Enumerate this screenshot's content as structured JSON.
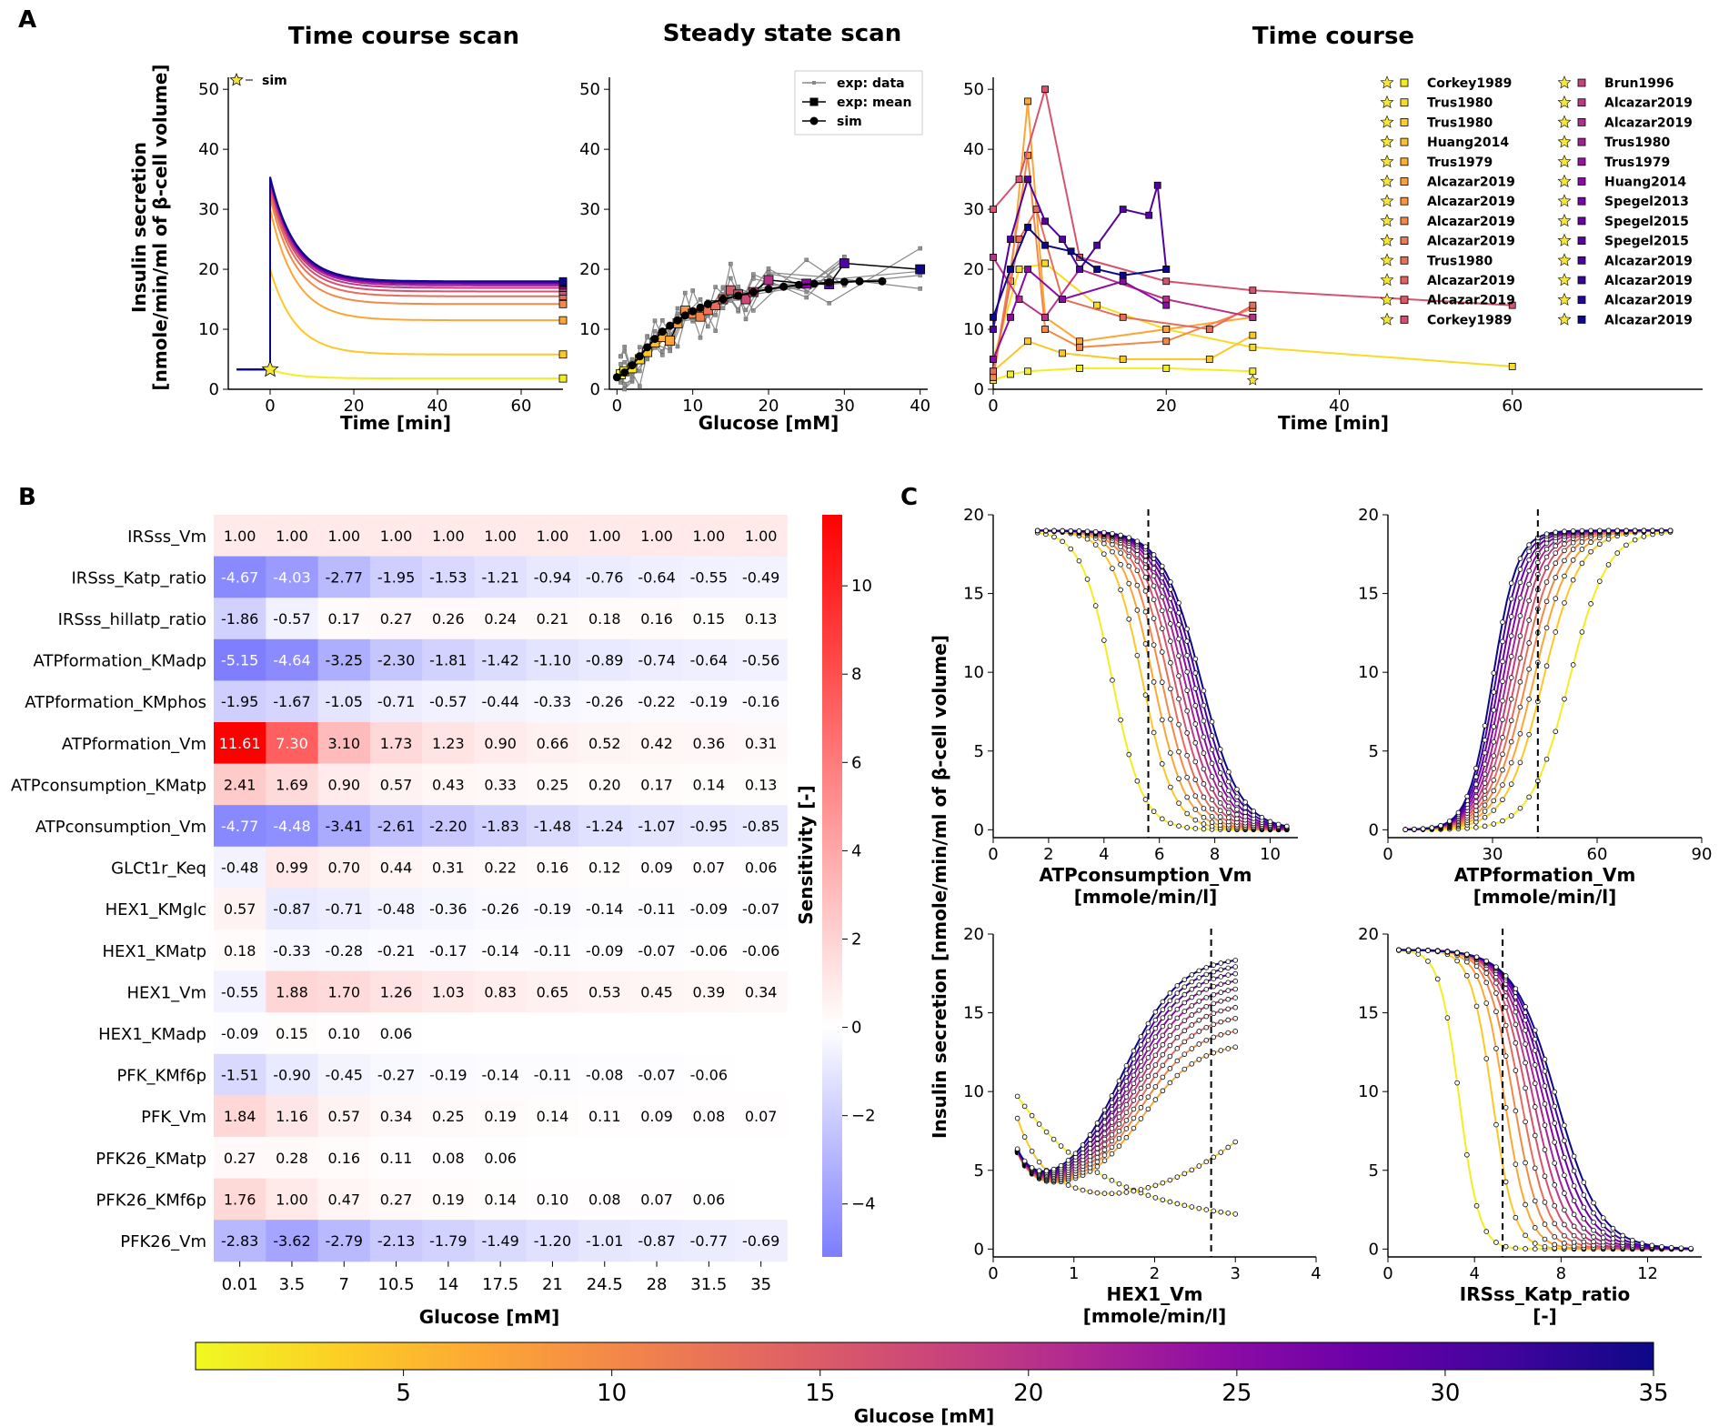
{
  "panels": {
    "A": "A",
    "B": "B",
    "C": "C"
  },
  "titles": {
    "time_course_scan": "Time course scan",
    "steady_state_scan": "Steady state scan",
    "time_course": "Time course"
  },
  "colorbar": {
    "label": "Glucose [mM]",
    "ticks": [
      5,
      10,
      15,
      20,
      25,
      30,
      35
    ],
    "range": [
      0.01,
      35
    ]
  },
  "chart_data": [
    {
      "id": "A1",
      "type": "line",
      "title": "Time course scan",
      "xlabel": "Time [min]",
      "ylabel": "Insulin secretion",
      "ylabel2": "[nmole/min/ml of β-cell volume]",
      "xlim": [
        -10,
        70
      ],
      "ylim": [
        0,
        52
      ],
      "xticks": [
        0,
        20,
        40,
        60
      ],
      "yticks": [
        0,
        10,
        20,
        30,
        40,
        50
      ],
      "legend": [
        "sim"
      ],
      "baseline": 3.3,
      "series": [
        {
          "glucose": 1,
          "peak": 3.3,
          "steady": 1.8
        },
        {
          "glucose": 4,
          "peak": 20,
          "steady": 5.8
        },
        {
          "glucose": 7,
          "peak": 30,
          "steady": 11.5
        },
        {
          "glucose": 10,
          "peak": 32,
          "steady": 14.2
        },
        {
          "glucose": 13,
          "peak": 33,
          "steady": 15.5
        },
        {
          "glucose": 16,
          "peak": 33.8,
          "steady": 16.3
        },
        {
          "glucose": 19,
          "peak": 34.3,
          "steady": 16.9
        },
        {
          "glucose": 22,
          "peak": 34.7,
          "steady": 17.3
        },
        {
          "glucose": 26,
          "peak": 35,
          "steady": 17.6
        },
        {
          "glucose": 30,
          "peak": 35.2,
          "steady": 17.8
        },
        {
          "glucose": 35,
          "peak": 35.4,
          "steady": 18.0
        }
      ]
    },
    {
      "id": "A2",
      "type": "scatter",
      "title": "Steady state scan",
      "xlabel": "Glucose [mM]",
      "xlim": [
        -1,
        41
      ],
      "ylim": [
        0,
        52
      ],
      "xticks": [
        0,
        10,
        20,
        30,
        40
      ],
      "yticks": [
        0,
        10,
        20,
        30,
        40,
        50
      ],
      "legend": [
        "exp: data",
        "exp: mean",
        "sim"
      ],
      "sim_x": [
        0,
        1,
        2,
        3,
        4,
        5,
        6,
        7,
        8,
        9,
        10,
        11,
        12,
        14,
        16,
        18,
        20,
        22,
        24,
        26,
        28,
        30,
        32,
        35
      ],
      "sim_y": [
        2.0,
        2.8,
        4.0,
        5.5,
        7.0,
        8.4,
        9.6,
        10.6,
        11.5,
        12.3,
        13.0,
        13.6,
        14.2,
        15.0,
        15.6,
        16.2,
        16.7,
        17.1,
        17.4,
        17.6,
        17.8,
        17.9,
        18.0,
        18.0
      ],
      "mean_x": [
        0.5,
        1,
        2,
        3,
        4,
        5,
        6,
        7,
        8,
        9,
        10,
        11,
        12,
        13,
        14,
        15,
        16,
        17,
        18,
        20,
        25,
        28,
        30,
        40
      ],
      "mean_y": [
        2.5,
        3.0,
        3.5,
        5.0,
        6.2,
        7.8,
        8.7,
        8.1,
        11.0,
        13.1,
        12.6,
        12.1,
        13.2,
        14.0,
        15.0,
        16.5,
        15.8,
        15.0,
        16.2,
        18.2,
        17.6,
        17.5,
        21.0,
        20.0
      ]
    },
    {
      "id": "A3",
      "type": "line",
      "title": "Time course",
      "xlabel": "Time [min]",
      "xlim": [
        0,
        82
      ],
      "ylim": [
        0,
        52
      ],
      "xticks": [
        0,
        20,
        40,
        60
      ],
      "yticks": [
        0,
        10,
        20,
        30,
        40,
        50
      ],
      "legend_col1": [
        "Corkey1989",
        "Trus1980",
        "Trus1980",
        "Huang2014",
        "Trus1979",
        "Alcazar2019",
        "Alcazar2019",
        "Alcazar2019",
        "Alcazar2019",
        "Trus1980",
        "Alcazar2019",
        "Alcazar2019",
        "Corkey1989"
      ],
      "legend_col2": [
        "Brun1996",
        "Alcazar2019",
        "Alcazar2019",
        "Trus1980",
        "Trus1979",
        "Huang2014",
        "Spegel2013",
        "Spegel2015",
        "Spegel2015",
        "Alcazar2019",
        "Alcazar2019",
        "Alcazar2019",
        "Alcazar2019"
      ],
      "series": [
        {
          "glucose": 1,
          "points": [
            [
              0,
              1.5
            ],
            [
              2,
              2.5
            ],
            [
              4,
              3
            ],
            [
              10,
              3.5
            ],
            [
              20,
              3.5
            ],
            [
              30,
              3
            ]
          ]
        },
        {
          "glucose": 2.5,
          "points": [
            [
              0,
              5
            ],
            [
              3,
              20
            ],
            [
              6,
              21
            ],
            [
              12,
              14
            ],
            [
              20,
              10
            ],
            [
              30,
              7
            ],
            [
              60,
              3.8
            ]
          ]
        },
        {
          "glucose": 4,
          "points": [
            [
              0,
              3
            ],
            [
              4,
              8
            ],
            [
              8,
              6
            ],
            [
              15,
              5
            ],
            [
              25,
              5
            ],
            [
              30,
              9
            ]
          ]
        },
        {
          "glucose": 7,
          "points": [
            [
              0,
              2
            ],
            [
              2,
              18
            ],
            [
              4,
              48
            ],
            [
              6,
              12
            ],
            [
              10,
              8
            ],
            [
              20,
              10
            ],
            [
              30,
              12
            ]
          ]
        },
        {
          "glucose": 10,
          "points": [
            [
              0,
              2
            ],
            [
              2,
              20
            ],
            [
              4,
              39
            ],
            [
              6,
              10
            ],
            [
              10,
              7
            ],
            [
              20,
              8
            ],
            [
              30,
              13.5
            ]
          ]
        },
        {
          "glucose": 13,
          "points": [
            [
              0,
              3
            ],
            [
              3,
              25
            ],
            [
              5,
              30
            ],
            [
              8,
              15
            ],
            [
              15,
              12
            ],
            [
              25,
              10
            ],
            [
              30,
              14
            ]
          ]
        },
        {
          "glucose": 16,
          "points": [
            [
              0,
              30
            ],
            [
              3,
              35
            ],
            [
              6,
              50
            ],
            [
              10,
              22
            ],
            [
              20,
              18
            ],
            [
              30,
              16.5
            ],
            [
              60,
              14
            ]
          ]
        },
        {
          "glucose": 20,
          "points": [
            [
              0,
              22
            ],
            [
              3,
              15
            ],
            [
              6,
              12
            ],
            [
              10,
              20
            ],
            [
              20,
              15
            ],
            [
              30,
              12
            ]
          ]
        },
        {
          "glucose": 25,
          "points": [
            [
              0,
              5
            ],
            [
              2,
              12
            ],
            [
              4,
              20
            ],
            [
              8,
              15
            ],
            [
              15,
              18
            ],
            [
              20,
              14
            ]
          ]
        },
        {
          "glucose": 30,
          "points": [
            [
              0,
              10
            ],
            [
              2,
              25
            ],
            [
              4,
              35
            ],
            [
              6,
              28
            ],
            [
              8,
              25
            ],
            [
              10,
              20
            ],
            [
              12,
              24
            ],
            [
              15,
              30
            ],
            [
              18,
              29
            ],
            [
              19,
              34
            ],
            [
              20,
              20
            ]
          ]
        },
        {
          "glucose": 35,
          "points": [
            [
              0,
              12
            ],
            [
              2,
              20
            ],
            [
              4,
              27
            ],
            [
              6,
              24
            ],
            [
              9,
              23
            ],
            [
              12,
              20
            ],
            [
              15,
              19
            ],
            [
              20,
              20
            ]
          ]
        }
      ]
    },
    {
      "id": "B",
      "type": "heatmap",
      "xlabel": "Glucose [mM]",
      "colorbar_label": "Sensitivity [-]",
      "vmin": -5.2,
      "vmax": 11.61,
      "colorbar_ticks": [
        -4,
        -2,
        0,
        2,
        4,
        6,
        8,
        10
      ],
      "columns": [
        "0.01",
        "3.5",
        "7",
        "10.5",
        "14",
        "17.5",
        "21",
        "24.5",
        "28",
        "31.5",
        "35"
      ],
      "rows": [
        {
          "label": "IRSss_Vm",
          "values": [
            "1.00",
            "1.00",
            "1.00",
            "1.00",
            "1.00",
            "1.00",
            "1.00",
            "1.00",
            "1.00",
            "1.00",
            "1.00"
          ]
        },
        {
          "label": "IRSss_Katp_ratio",
          "values": [
            "-4.67",
            "-4.03",
            "-2.77",
            "-1.95",
            "-1.53",
            "-1.21",
            "-0.94",
            "-0.76",
            "-0.64",
            "-0.55",
            "-0.49"
          ]
        },
        {
          "label": "IRSss_hillatp_ratio",
          "values": [
            "-1.86",
            "-0.57",
            "0.17",
            "0.27",
            "0.26",
            "0.24",
            "0.21",
            "0.18",
            "0.16",
            "0.15",
            "0.13"
          ]
        },
        {
          "label": "ATPformation_KMadp",
          "values": [
            "-5.15",
            "-4.64",
            "-3.25",
            "-2.30",
            "-1.81",
            "-1.42",
            "-1.10",
            "-0.89",
            "-0.74",
            "-0.64",
            "-0.56"
          ]
        },
        {
          "label": "ATPformation_KMphos",
          "values": [
            "-1.95",
            "-1.67",
            "-1.05",
            "-0.71",
            "-0.57",
            "-0.44",
            "-0.33",
            "-0.26",
            "-0.22",
            "-0.19",
            "-0.16"
          ]
        },
        {
          "label": "ATPformation_Vm",
          "values": [
            "11.61",
            "7.30",
            "3.10",
            "1.73",
            "1.23",
            "0.90",
            "0.66",
            "0.52",
            "0.42",
            "0.36",
            "0.31"
          ]
        },
        {
          "label": "ATPconsumption_KMatp",
          "values": [
            "2.41",
            "1.69",
            "0.90",
            "0.57",
            "0.43",
            "0.33",
            "0.25",
            "0.20",
            "0.17",
            "0.14",
            "0.13"
          ]
        },
        {
          "label": "ATPconsumption_Vm",
          "values": [
            "-4.77",
            "-4.48",
            "-3.41",
            "-2.61",
            "-2.20",
            "-1.83",
            "-1.48",
            "-1.24",
            "-1.07",
            "-0.95",
            "-0.85"
          ]
        },
        {
          "label": "GLCt1r_Keq",
          "values": [
            "-0.48",
            "0.99",
            "0.70",
            "0.44",
            "0.31",
            "0.22",
            "0.16",
            "0.12",
            "0.09",
            "0.07",
            "0.06"
          ]
        },
        {
          "label": "HEX1_KMglc",
          "values": [
            "0.57",
            "-0.87",
            "-0.71",
            "-0.48",
            "-0.36",
            "-0.26",
            "-0.19",
            "-0.14",
            "-0.11",
            "-0.09",
            "-0.07"
          ]
        },
        {
          "label": "HEX1_KMatp",
          "values": [
            "0.18",
            "-0.33",
            "-0.28",
            "-0.21",
            "-0.17",
            "-0.14",
            "-0.11",
            "-0.09",
            "-0.07",
            "-0.06",
            "-0.06"
          ]
        },
        {
          "label": "HEX1_Vm",
          "values": [
            "-0.55",
            "1.88",
            "1.70",
            "1.26",
            "1.03",
            "0.83",
            "0.65",
            "0.53",
            "0.45",
            "0.39",
            "0.34"
          ]
        },
        {
          "label": "HEX1_KMadp",
          "values": [
            "-0.09",
            "0.15",
            "0.10",
            "0.06",
            "",
            "",
            "",
            "",
            "",
            "",
            ""
          ]
        },
        {
          "label": "PFK_KMf6p",
          "values": [
            "-1.51",
            "-0.90",
            "-0.45",
            "-0.27",
            "-0.19",
            "-0.14",
            "-0.11",
            "-0.08",
            "-0.07",
            "-0.06",
            ""
          ]
        },
        {
          "label": "PFK_Vm",
          "values": [
            "1.84",
            "1.16",
            "0.57",
            "0.34",
            "0.25",
            "0.19",
            "0.14",
            "0.11",
            "0.09",
            "0.08",
            "0.07"
          ]
        },
        {
          "label": "PFK26_KMatp",
          "values": [
            "0.27",
            "0.28",
            "0.16",
            "0.11",
            "0.08",
            "0.06",
            "",
            "",
            "",
            "",
            ""
          ]
        },
        {
          "label": "PFK26_KMf6p",
          "values": [
            "1.76",
            "1.00",
            "0.47",
            "0.27",
            "0.19",
            "0.14",
            "0.10",
            "0.08",
            "0.07",
            "0.06",
            ""
          ]
        },
        {
          "label": "PFK26_Vm",
          "values": [
            "-2.83",
            "-3.62",
            "-2.79",
            "-2.13",
            "-1.79",
            "-1.49",
            "-1.20",
            "-1.01",
            "-0.87",
            "-0.77",
            "-0.69"
          ]
        }
      ]
    },
    {
      "id": "C",
      "type": "line",
      "ylabel": "Insulin secretion [nmole/min/ml of β-cell volume]",
      "subplots": [
        {
          "xlabel": "ATPconsumption_Vm",
          "xunit": "[mmole/min/l]",
          "xlim": [
            0,
            11
          ],
          "ylim": [
            -0.5,
            20
          ],
          "xticks": [
            0,
            2,
            4,
            6,
            8,
            10
          ],
          "yticks": [
            0,
            5,
            10,
            15,
            20
          ],
          "ref": 5.6,
          "shape": "decreasing",
          "x0": 1.6,
          "x1": 10.6,
          "mid_low": 4.3,
          "mid_high": 7.5,
          "width_low": 0.55,
          "width_high": 0.7,
          "ymin_low": 0,
          "ymax": 19,
          "n_points": 30
        },
        {
          "xlabel": "ATPformation_Vm",
          "xunit": "[mmole/min/l]",
          "xlim": [
            0,
            90
          ],
          "ylim": [
            -0.5,
            20
          ],
          "xticks": [
            0,
            30,
            60,
            90
          ],
          "yticks": [
            0,
            5,
            10,
            15,
            20
          ],
          "ref": 43,
          "shape": "increasing",
          "x0": 5,
          "x1": 81,
          "mid_low": 52,
          "mid_high": 30,
          "width_low": 5.5,
          "width_high": 3.5,
          "ymin_low": 0,
          "ymax": 19,
          "n_points": 35
        },
        {
          "xlabel": "HEX1_Vm",
          "xunit": "[mmole/min/l]",
          "xlim": [
            0,
            4
          ],
          "ylim": [
            -0.5,
            20
          ],
          "xticks": [
            0,
            1,
            2,
            3,
            4
          ],
          "yticks": [
            0,
            5,
            10,
            15,
            20
          ],
          "ref": 2.7,
          "shape": "hex",
          "x0": 0.3,
          "x1": 3.0,
          "n_points": 30
        },
        {
          "xlabel": "IRSss_Katp_ratio",
          "xunit": "[-]",
          "xlim": [
            0,
            14.5
          ],
          "ylim": [
            -0.5,
            20
          ],
          "xticks": [
            0,
            4,
            8,
            12
          ],
          "yticks": [
            0,
            5,
            10,
            15,
            20
          ],
          "ref": 5.3,
          "shape": "decreasing",
          "x0": 0.5,
          "x1": 14,
          "mid_low": 3.3,
          "mid_high": 7.8,
          "width_low": 0.45,
          "width_high": 1.0,
          "ymin_low": 0,
          "ymax": 19,
          "n_points": 30
        }
      ]
    }
  ]
}
